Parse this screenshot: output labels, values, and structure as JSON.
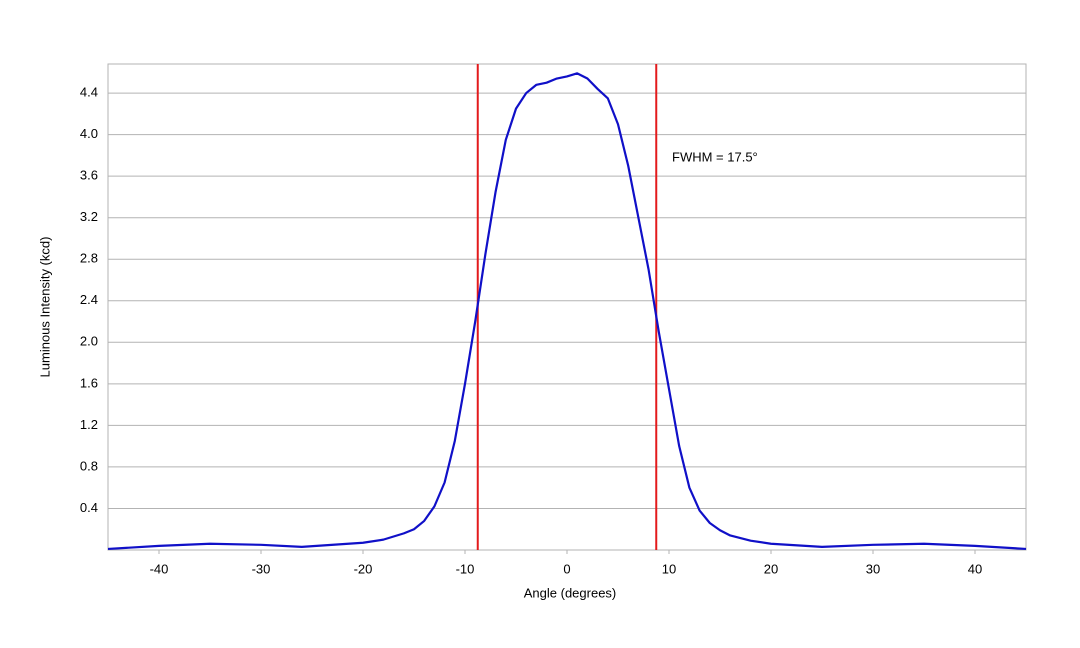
{
  "chart_data": {
    "type": "line",
    "x_label": "Angle (degrees)",
    "y_label": "Luminous Intensity (kcd)",
    "annotation": "FWHM = 17.5°",
    "x": [
      -45,
      -40,
      -35,
      -30,
      -26,
      -20,
      -18,
      -16,
      -15,
      -14,
      -13,
      -12,
      -11,
      -10,
      -9,
      -8,
      -7,
      -6,
      -5,
      -4,
      -3,
      -2,
      -1,
      0,
      1,
      2,
      3,
      4,
      5,
      6,
      7,
      8,
      9,
      10,
      11,
      12,
      13,
      14,
      15,
      16,
      18,
      20,
      25,
      30,
      35,
      40,
      45
    ],
    "values": [
      0.01,
      0.04,
      0.06,
      0.05,
      0.03,
      0.07,
      0.1,
      0.16,
      0.2,
      0.28,
      0.42,
      0.65,
      1.05,
      1.6,
      2.2,
      2.85,
      3.45,
      3.95,
      4.25,
      4.4,
      4.48,
      4.5,
      4.54,
      4.56,
      4.59,
      4.54,
      4.44,
      4.35,
      4.1,
      3.7,
      3.2,
      2.7,
      2.1,
      1.55,
      1.0,
      0.6,
      0.38,
      0.26,
      0.19,
      0.14,
      0.09,
      0.06,
      0.03,
      0.05,
      0.06,
      0.04,
      0.01
    ],
    "color": "#1010c8",
    "vlines": [
      -8.75,
      8.75
    ],
    "vline_color": "#e31a1c",
    "xlim": [
      -45,
      45
    ],
    "ylim": [
      0,
      4.68
    ],
    "xticks": [
      -40,
      -30,
      -20,
      -10,
      0,
      10,
      20,
      30,
      40
    ],
    "yticks": [
      0.4,
      0.8,
      1.2,
      1.6,
      {
        "value": 2,
        "label": "2.0"
      },
      2.4,
      2.8,
      3.2,
      3.6,
      {
        "value": 4,
        "label": "4.0"
      },
      4.4
    ],
    "grid": true
  }
}
